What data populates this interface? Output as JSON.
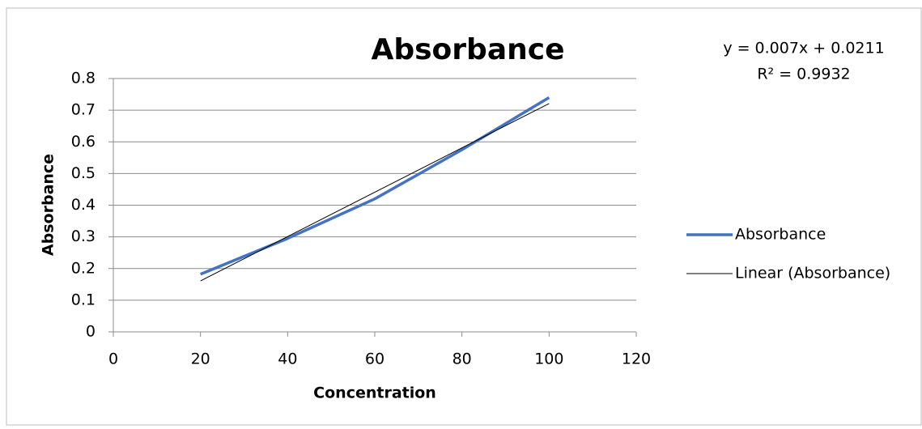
{
  "chart_data": {
    "type": "line",
    "title": "Absorbance",
    "x_label": "Concentration",
    "y_label": "Absorbance",
    "annotations": [
      "y = 0.007x + 0.0211",
      "R² = 0.9932"
    ],
    "series": [
      {
        "name": "Absorbance",
        "color": "#4472c4",
        "width": 3.5,
        "x": [
          20,
          40,
          60,
          80,
          100
        ],
        "values": [
          0.182,
          0.295,
          0.42,
          0.575,
          0.74
        ]
      },
      {
        "name": "Linear (Absorbance)",
        "color": "#000000",
        "width": 1,
        "x": [
          20,
          100
        ],
        "values": [
          0.161,
          0.721
        ]
      }
    ],
    "xlim": [
      0,
      120
    ],
    "xticks": [
      0,
      20,
      40,
      60,
      80,
      100,
      120
    ],
    "ylim": [
      0,
      0.8
    ],
    "yticks": [
      0,
      0.1,
      0.2,
      0.3,
      0.4,
      0.5,
      0.6,
      0.7,
      0.8
    ],
    "grid": true,
    "legend": "right"
  }
}
